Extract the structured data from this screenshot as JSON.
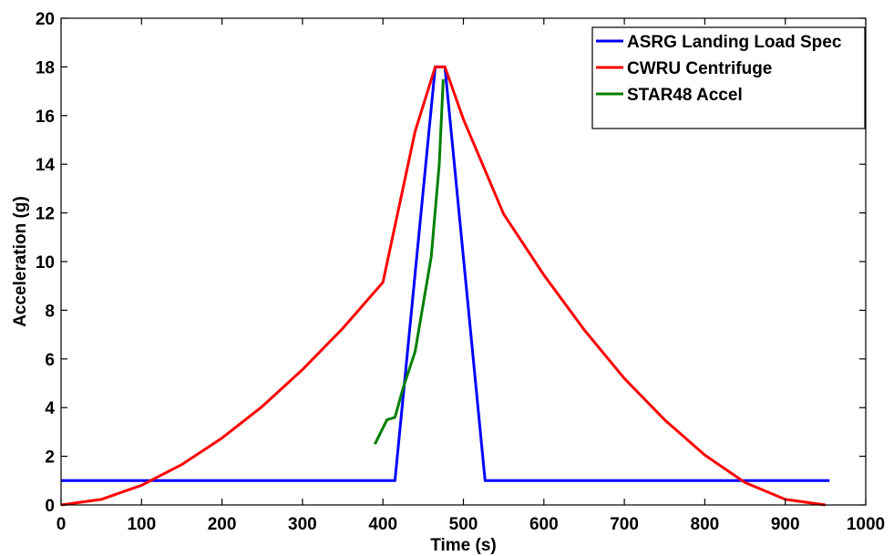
{
  "chart_data": {
    "type": "line",
    "xlabel": "Time (s)",
    "ylabel": "Acceleration (g)",
    "xlim": [
      0,
      1000
    ],
    "ylim": [
      0,
      20
    ],
    "xticks": [
      0,
      100,
      200,
      300,
      400,
      500,
      600,
      700,
      800,
      900,
      1000
    ],
    "yticks": [
      0,
      2,
      4,
      6,
      8,
      10,
      12,
      14,
      16,
      18,
      20
    ],
    "grid": false,
    "legend_position": "top-right",
    "series": [
      {
        "name": "ASRG Landing Load Spec",
        "color": "#0000ff",
        "points": [
          [
            0,
            1
          ],
          [
            415,
            1
          ],
          [
            465,
            18
          ],
          [
            477,
            18
          ],
          [
            527,
            1
          ],
          [
            955,
            1
          ]
        ]
      },
      {
        "name": "CWRU Centrifuge",
        "color": "#ff0000",
        "points": [
          [
            0,
            0
          ],
          [
            50,
            0.23
          ],
          [
            100,
            0.81
          ],
          [
            150,
            1.66
          ],
          [
            200,
            2.75
          ],
          [
            250,
            4.05
          ],
          [
            300,
            5.56
          ],
          [
            350,
            7.25
          ],
          [
            400,
            9.15
          ],
          [
            440,
            15.35
          ],
          [
            465,
            18
          ],
          [
            477,
            18
          ],
          [
            500,
            15.85
          ],
          [
            550,
            11.95
          ],
          [
            600,
            9.45
          ],
          [
            650,
            7.2
          ],
          [
            700,
            5.2
          ],
          [
            750,
            3.5
          ],
          [
            800,
            2.05
          ],
          [
            850,
            0.92
          ],
          [
            900,
            0.23
          ],
          [
            950,
            0
          ]
        ]
      },
      {
        "name": "STAR48 Accel",
        "color": "#008000",
        "points": [
          [
            390,
            2.5
          ],
          [
            405,
            3.5
          ],
          [
            415,
            3.6
          ],
          [
            425,
            4.8
          ],
          [
            440,
            6.3
          ],
          [
            460,
            10.2
          ],
          [
            470,
            14
          ],
          [
            475,
            17.5
          ]
        ]
      }
    ]
  }
}
